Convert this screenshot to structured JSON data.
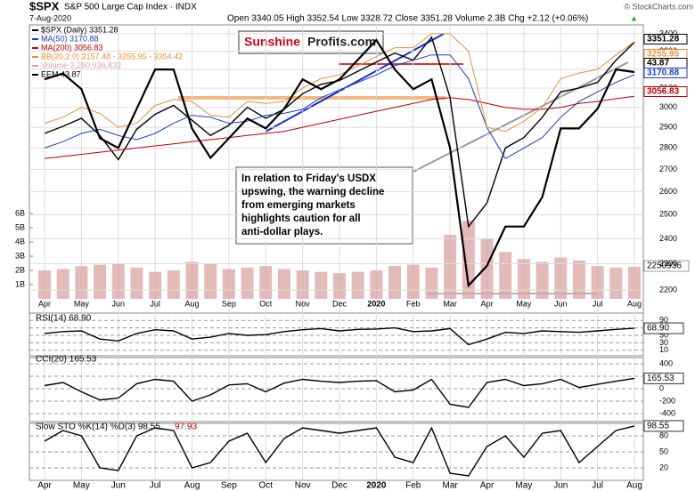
{
  "header": {
    "symbol": "$SPX",
    "name": "S&P 500 Large Cap Index · INDX",
    "date": "7-Aug-2020",
    "stats": "Open 3340.05  High 3352.54  Low 3328.72  Close 3351.28  Volume 2.3B  Chg +2.12 (+0.06%)",
    "arrow": "▲",
    "source": "© StockCharts.com",
    "logo_a": "Sunshine",
    "logo_b": "Profits.com"
  },
  "annotation": [
    "In relation to Friday's USDX",
    "upswing, the warning decline",
    "from emerging markets",
    "highlights caution for all",
    "anti-dollar plays."
  ],
  "chart_data": [
    {
      "type": "line",
      "log": true,
      "categories": [
        "Apr",
        null,
        "May",
        null,
        "Jun",
        null,
        "Jul",
        null,
        "Aug",
        null,
        "Sep",
        null,
        "Oct",
        null,
        "Nov",
        null,
        "Dec",
        null,
        "2020",
        null,
        "Feb",
        null,
        "Mar",
        null,
        "Apr",
        null,
        "May",
        null,
        "Jun",
        null,
        "Jul",
        null,
        "Aug"
      ],
      "ylim": [
        2180,
        3420
      ],
      "yticks": [
        2200,
        2300,
        2400,
        2500,
        2600,
        2700,
        2800,
        2900,
        3000,
        3100,
        3200,
        3300,
        3400
      ],
      "y2lim": [
        32.5,
        46
      ],
      "current_labels": [
        "3351.28",
        "3255.95",
        "43.87",
        "3170.88",
        "3056.83"
      ],
      "series": [
        {
          "name": "$SPX (Daily) 3351.28",
          "color": "#000000",
          "values": [
            2870,
            2905,
            2945,
            2860,
            2745,
            2890,
            2965,
            3010,
            2935,
            2860,
            2910,
            3000,
            2945,
            2990,
            3070,
            3120,
            3140,
            3190,
            3240,
            3290,
            3250,
            3380,
            3050,
            2450,
            2550,
            2800,
            2850,
            2950,
            3080,
            3100,
            3130,
            3250,
            3351.28
          ]
        },
        {
          "name": "MA(50) 3170.88",
          "color": "#1f3fbf",
          "values": [
            2800,
            2830,
            2870,
            2890,
            2860,
            2840,
            2870,
            2920,
            2960,
            2950,
            2920,
            2930,
            2960,
            2970,
            2990,
            3050,
            3090,
            3130,
            3170,
            3220,
            3250,
            3280,
            3280,
            3150,
            2900,
            2750,
            2800,
            2850,
            2950,
            3030,
            3080,
            3130,
            3170.88
          ]
        },
        {
          "name": "MA(200) 3056.83",
          "color": "#c00000",
          "values": [
            2750,
            2760,
            2770,
            2780,
            2790,
            2800,
            2810,
            2820,
            2830,
            2840,
            2850,
            2860,
            2870,
            2880,
            2900,
            2920,
            2940,
            2960,
            2980,
            3000,
            3020,
            3040,
            3050,
            3040,
            3020,
            3000,
            2990,
            2990,
            3000,
            3020,
            3030,
            3045,
            3056.83
          ]
        },
        {
          "name": "BB(20,2.0) 3157.48 - 3255.95 - 3354.42",
          "color": "#e69138",
          "values": [
            2920,
            2950,
            3000,
            2970,
            2900,
            2920,
            3010,
            3040,
            3030,
            2960,
            2950,
            3030,
            3020,
            3030,
            3100,
            3150,
            3170,
            3220,
            3270,
            3320,
            3320,
            3400,
            3400,
            3300,
            2900,
            2880,
            2930,
            3000,
            3150,
            3180,
            3200,
            3280,
            3354.42
          ]
        },
        {
          "name": "EEM 43.87",
          "color": "#000000",
          "axis": "y2",
          "values": [
            43.5,
            43.8,
            43,
            40.5,
            40,
            42,
            44,
            44,
            41,
            39.5,
            40.5,
            41.5,
            41,
            42,
            43.5,
            43,
            43.5,
            44.5,
            45.5,
            44,
            43,
            43.5,
            40,
            33,
            34,
            36,
            36,
            37.5,
            41,
            41,
            42,
            44,
            43.87
          ]
        }
      ]
    },
    {
      "type": "bar",
      "name": "Volume 2,250,936,832",
      "color": "#d9a3a3",
      "ylim": [
        0,
        7000000000
      ],
      "yticks": [
        {
          "value": 1000000000,
          "label": "1B"
        },
        {
          "value": 2000000000,
          "label": "2B"
        },
        {
          "value": 3000000000,
          "label": "3B"
        },
        {
          "value": 4000000000,
          "label": "4B"
        },
        {
          "value": 5000000000,
          "label": "5B"
        },
        {
          "value": 6000000000,
          "label": "6B"
        }
      ],
      "current_label": "2250936",
      "values": [
        2000000000,
        2100000000,
        2300000000,
        2400000000,
        2500000000,
        2200000000,
        1900000000,
        2000000000,
        2600000000,
        2500000000,
        2100000000,
        2200000000,
        2300000000,
        2100000000,
        2000000000,
        1900000000,
        1800000000,
        1900000000,
        2000000000,
        2300000000,
        2400000000,
        2200000000,
        4500000000,
        5500000000,
        4200000000,
        3300000000,
        2800000000,
        2600000000,
        2900000000,
        2700000000,
        2300000000,
        2200000000,
        2250936832
      ]
    },
    {
      "type": "line",
      "title": "RSI(14) 68.90",
      "ylim": [
        0,
        100
      ],
      "yticks": [
        10,
        30,
        50,
        70,
        90
      ],
      "current_label": "68.90",
      "series": [
        {
          "color": "#000000",
          "values": [
            55,
            60,
            62,
            40,
            35,
            55,
            65,
            62,
            40,
            45,
            55,
            50,
            52,
            60,
            65,
            68,
            62,
            66,
            67,
            70,
            60,
            62,
            68,
            25,
            40,
            58,
            55,
            62,
            60,
            58,
            62,
            66,
            68.9
          ]
        }
      ]
    },
    {
      "type": "line",
      "title": "CCI(20) 165.53",
      "ylim": [
        -500,
        500
      ],
      "yticks": [
        -400,
        -200,
        0,
        200,
        400
      ],
      "current_label": "165.53",
      "series": [
        {
          "color": "#000000",
          "values": [
            50,
            100,
            -50,
            -180,
            -150,
            80,
            150,
            120,
            -200,
            -100,
            60,
            80,
            -50,
            90,
            150,
            120,
            100,
            120,
            130,
            -50,
            -20,
            150,
            -250,
            -300,
            100,
            150,
            50,
            80,
            150,
            20,
            70,
            120,
            165.53
          ]
        }
      ]
    },
    {
      "type": "line",
      "title": "Slow STO %K(14) %D(3) 98.55,",
      "title_b": "97.93",
      "ylim": [
        0,
        100
      ],
      "yticks": [
        20,
        50,
        80
      ],
      "current_label": "98.55",
      "series": [
        {
          "color": "#000000",
          "values": [
            70,
            90,
            80,
            20,
            15,
            80,
            95,
            90,
            20,
            30,
            70,
            85,
            30,
            75,
            95,
            90,
            85,
            90,
            95,
            40,
            30,
            95,
            10,
            5,
            60,
            80,
            40,
            85,
            90,
            30,
            60,
            90,
            98.55
          ]
        }
      ]
    }
  ]
}
